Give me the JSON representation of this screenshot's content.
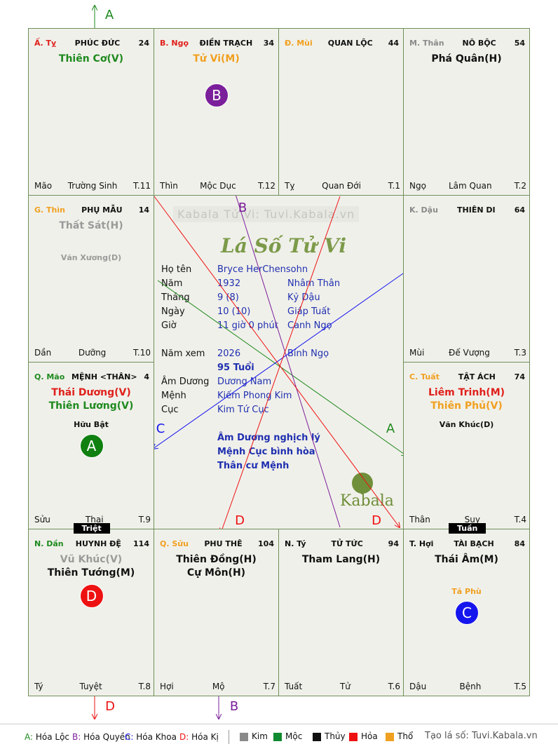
{
  "cells": [
    {
      "branch": "Ấ. Tỵ",
      "branch_color": "#e0201b",
      "name": "PHÚC ĐỨC",
      "number": 24,
      "stars": [
        {
          "text": "Thiên Cơ(V)",
          "color": "#1e8a1e"
        }
      ],
      "minor": [],
      "bottom": [
        "Mão",
        "Trường Sinh",
        "T.11"
      ]
    },
    {
      "branch": "B. Ngọ",
      "branch_color": "#e0201b",
      "name": "ĐIỀN TRẠCH",
      "number": 34,
      "stars": [
        {
          "text": "Tử Vi(M)",
          "color": "#f0a020"
        }
      ],
      "minor": [],
      "badge": {
        "text": "B",
        "color": "#7b1f9a"
      },
      "bottom": [
        "Thìn",
        "Mộc Dục",
        "T.12"
      ]
    },
    {
      "branch": "Đ. Mùi",
      "branch_color": "#f0a020",
      "name": "QUAN LỘC",
      "number": 44,
      "stars": [],
      "minor": [],
      "bottom": [
        "Tỵ",
        "Quan Đới",
        "T.1"
      ]
    },
    {
      "branch": "M. Thân",
      "branch_color": "#8a8a8a",
      "name": "NÔ BỘC",
      "number": 54,
      "stars": [
        {
          "text": "Phá Quân(H)",
          "color": "#111111"
        }
      ],
      "minor": [],
      "bottom": [
        "Ngọ",
        "Lâm Quan",
        "T.2"
      ]
    },
    {
      "branch": "G. Thìn",
      "branch_color": "#f0a020",
      "name": "PHỤ MẪU",
      "number": 14,
      "stars": [
        {
          "text": "Thất Sát(H)",
          "color": "#9a9a9a"
        }
      ],
      "minor": [
        {
          "text": "Văn Xương(D)",
          "color": "#9a9a9a"
        }
      ],
      "bottom": [
        "Dần",
        "Dưỡng",
        "T.10"
      ]
    },
    {
      "branch": "K. Dậu",
      "branch_color": "#8a8a8a",
      "name": "THIÊN DI",
      "number": 64,
      "stars": [],
      "minor": [],
      "bottom": [
        "Mùi",
        "Đế Vượng",
        "T.3"
      ]
    },
    {
      "branch": "Q. Mão",
      "branch_color": "#1e8a1e",
      "name": "MỆNH <THÂN>",
      "number": 4,
      "stars": [
        {
          "text": "Thái Dương(V)",
          "color": "#e0201b"
        },
        {
          "text": "Thiên Lương(V)",
          "color": "#1e8a1e"
        }
      ],
      "minor": [
        {
          "text": "Hữu Bật",
          "color": "#111111"
        }
      ],
      "badge": {
        "text": "A",
        "color": "#108010"
      },
      "tag": "Triệt",
      "bottom": [
        "Sửu",
        "Thai",
        "T.9"
      ]
    },
    {
      "branch": "C. Tuất",
      "branch_color": "#f0a020",
      "name": "TẬT ÁCH",
      "number": 74,
      "stars": [
        {
          "text": "Liêm Trinh(M)",
          "color": "#e0201b"
        },
        {
          "text": "Thiên Phủ(V)",
          "color": "#f0a020"
        }
      ],
      "minor": [
        {
          "text": "Văn Khúc(D)",
          "color": "#111111"
        }
      ],
      "tag": "Tuần",
      "bottom": [
        "Thân",
        "Suy",
        "T.4"
      ]
    },
    {
      "branch": "N. Dần",
      "branch_color": "#1e8a1e",
      "name": "HUYNH ĐỆ",
      "number": 114,
      "stars": [
        {
          "text": "Vũ Khúc(V)",
          "color": "#9a9a9a"
        },
        {
          "text": "Thiên Tướng(M)",
          "color": "#111111"
        }
      ],
      "minor": [],
      "badge": {
        "text": "D",
        "color": "#ee1111"
      },
      "bottom": [
        "Tý",
        "Tuyệt",
        "T.8"
      ]
    },
    {
      "branch": "Q. Sửu",
      "branch_color": "#f0a020",
      "name": "PHU THÊ",
      "number": 104,
      "stars": [
        {
          "text": "Thiên Đồng(H)",
          "color": "#111111"
        },
        {
          "text": "Cự Môn(H)",
          "color": "#111111"
        }
      ],
      "minor": [],
      "bottom": [
        "Hợi",
        "Mộ",
        "T.7"
      ]
    },
    {
      "branch": "N. Tý",
      "branch_color": "#111111",
      "name": "TỬ TỨC",
      "number": 94,
      "stars": [
        {
          "text": "Tham Lang(H)",
          "color": "#111111"
        }
      ],
      "minor": [],
      "bottom": [
        "Tuất",
        "Tử",
        "T.6"
      ]
    },
    {
      "branch": "T. Hợi",
      "branch_color": "#111111",
      "name": "TÀI BẠCH",
      "number": 84,
      "stars": [
        {
          "text": "Thái Âm(M)",
          "color": "#111111"
        }
      ],
      "minor": [
        {
          "text": "Tả Phù",
          "color": "#f0a020"
        }
      ],
      "badge": {
        "text": "C",
        "color": "#1515ee"
      },
      "bottom": [
        "Dậu",
        "Bệnh",
        "T.5"
      ]
    }
  ],
  "center": {
    "watermark": "Kabala Tử Vi: Tuvi.Kabala.vn",
    "title": "Lá Số Tử Vi",
    "rows": [
      [
        "Họ tên",
        "Bryce HerChensohn"
      ],
      [
        "Năm",
        "1932",
        "Nhâm Thân"
      ],
      [
        "Tháng",
        "9  (8)",
        "Kỷ Dậu"
      ],
      [
        "Ngày",
        "10  (10)",
        "Giáp Tuất"
      ],
      [
        "Giờ",
        "11 giờ 0 phút",
        "Canh Ngọ"
      ]
    ],
    "year_view": [
      "Năm xem",
      "2026",
      "Bính Ngọ"
    ],
    "age": "95 Tuổi",
    "rows2": [
      [
        "Âm Dương",
        "Dương Nam"
      ],
      [
        "Mệnh",
        "Kiếm Phong Kim"
      ],
      [
        "Cục",
        "Kim Tứ Cục"
      ]
    ],
    "notes": [
      "Âm Dương nghịch lý",
      "Mệnh Cục bình hòa",
      "Thân cư Mệnh"
    ],
    "logo": "Kabala"
  },
  "arrows": [
    {
      "label": "A",
      "color": "#1e8a1e"
    },
    {
      "label": "A",
      "color": "#1e8a1e"
    },
    {
      "label": "B",
      "color": "#7b1f9a"
    },
    {
      "label": "C",
      "color": "#1515ee"
    },
    {
      "label": "D",
      "color": "#ee1111"
    },
    {
      "label": "D",
      "color": "#ee1111"
    },
    {
      "label": "D",
      "color": "#ee1111"
    },
    {
      "label": "B",
      "color": "#7b1f9a"
    }
  ],
  "legend": {
    "keys": [
      {
        "key": "A:",
        "text": "Hóa Lộc",
        "color": "#1e8a1e"
      },
      {
        "key": "B:",
        "text": "Hóa Quyền",
        "color": "#7b1f9a"
      },
      {
        "key": "C:",
        "text": "Hóa Khoa",
        "color": "#1515ee"
      },
      {
        "key": "D:",
        "text": "Hóa Kị",
        "color": "#ee1111"
      }
    ],
    "elements": [
      {
        "text": "Kim",
        "color": "#8a8a8a"
      },
      {
        "text": "Mộc",
        "color": "#108a30"
      },
      {
        "text": "Thủy",
        "color": "#111111"
      },
      {
        "text": "Hỏa",
        "color": "#ee1111"
      },
      {
        "text": "Thổ",
        "color": "#f0a020"
      }
    ],
    "credit": "Tạo lá số: Tuvi.Kabala.vn"
  }
}
